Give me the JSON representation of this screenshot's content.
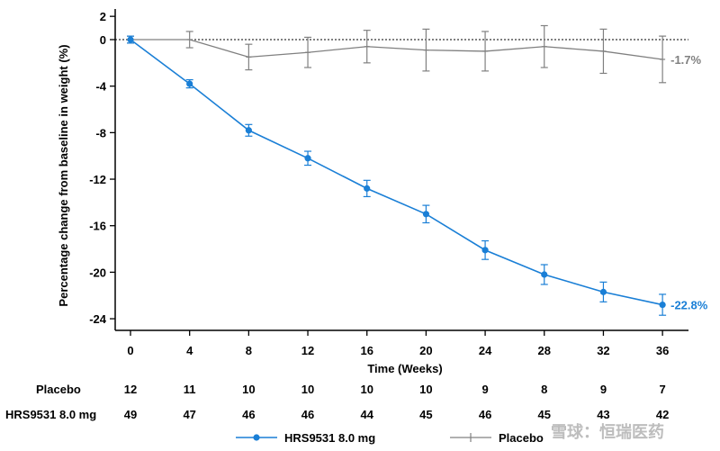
{
  "chart_data": {
    "type": "line",
    "xlabel": "Time (Weeks)",
    "ylabel": "Percentage change from baseline in weight (%)",
    "x": [
      0,
      4,
      8,
      12,
      16,
      20,
      24,
      28,
      32,
      36
    ],
    "xlim": [
      0,
      37
    ],
    "ylim": [
      -25,
      2
    ],
    "yticks": [
      2,
      0,
      -4,
      -8,
      -12,
      -16,
      -20,
      -24
    ],
    "baseline": 0,
    "series": [
      {
        "name": "Placebo",
        "color": "#808080",
        "values": [
          0,
          0.0,
          -1.5,
          -1.1,
          -0.6,
          -0.9,
          -1.0,
          -0.6,
          -1.0,
          -1.7
        ],
        "err": [
          0.3,
          0.7,
          1.1,
          1.3,
          1.4,
          1.8,
          1.7,
          1.8,
          1.9,
          2.0
        ],
        "end_label": "-1.7%"
      },
      {
        "name": "HRS9531 8.0 mg",
        "color": "#1a7fd6",
        "values": [
          0,
          -3.8,
          -7.8,
          -10.2,
          -12.8,
          -15.0,
          -18.1,
          -20.2,
          -21.7,
          -22.8
        ],
        "err": [
          0.3,
          0.35,
          0.5,
          0.6,
          0.7,
          0.75,
          0.8,
          0.85,
          0.85,
          0.9
        ],
        "end_label": "-22.8%"
      }
    ],
    "n_at_risk": {
      "rows": [
        {
          "label": "Placebo",
          "values": [
            "12",
            "11",
            "10",
            "10",
            "10",
            "10",
            "9",
            "8",
            "9",
            "7"
          ]
        },
        {
          "label": "HRS9531 8.0 mg",
          "values": [
            "49",
            "47",
            "46",
            "46",
            "44",
            "45",
            "46",
            "45",
            "43",
            "42"
          ]
        }
      ]
    },
    "legend": [
      "HRS9531 8.0 mg",
      "Placebo"
    ],
    "legend_position": "bottom"
  },
  "watermark": "雪球：恒瑞医药"
}
